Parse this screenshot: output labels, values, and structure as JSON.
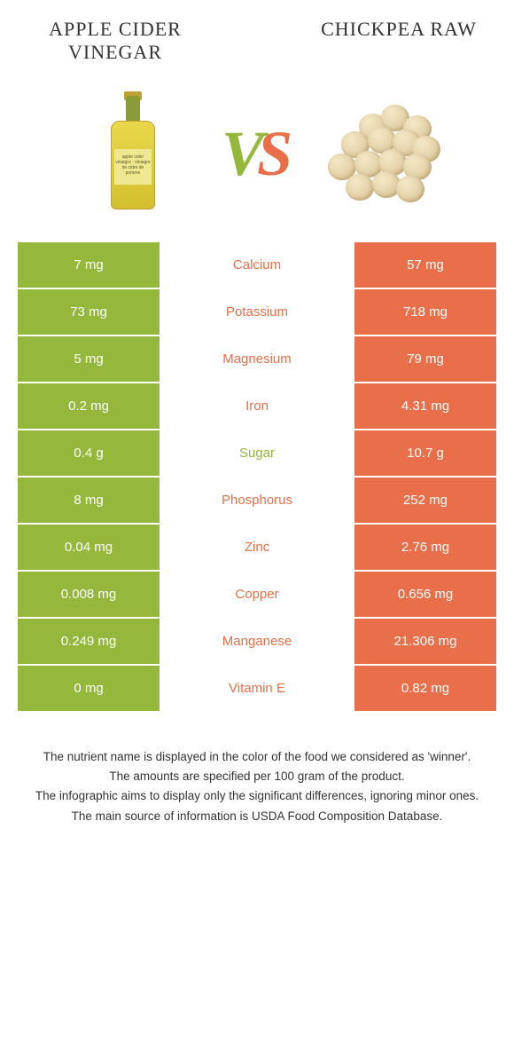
{
  "left_food": {
    "title": "APPLE CIDER VINEGAR",
    "color": "#95b73c",
    "label_text": "apple cider\nvinaigre - vinaigre de\ncidre de pomme"
  },
  "right_food": {
    "title": "CHICKPEA RAW",
    "color": "#e86f4a"
  },
  "vs_text": {
    "v": "V",
    "s": "S"
  },
  "rows": [
    {
      "left": "7 mg",
      "mid": "Calcium",
      "right": "57 mg",
      "winner": "right"
    },
    {
      "left": "73 mg",
      "mid": "Potassium",
      "right": "718 mg",
      "winner": "right"
    },
    {
      "left": "5 mg",
      "mid": "Magnesium",
      "right": "79 mg",
      "winner": "right"
    },
    {
      "left": "0.2 mg",
      "mid": "Iron",
      "right": "4.31 mg",
      "winner": "right"
    },
    {
      "left": "0.4 g",
      "mid": "Sugar",
      "right": "10.7 g",
      "winner": "left"
    },
    {
      "left": "8 mg",
      "mid": "Phosphorus",
      "right": "252 mg",
      "winner": "right"
    },
    {
      "left": "0.04 mg",
      "mid": "Zinc",
      "right": "2.76 mg",
      "winner": "right"
    },
    {
      "left": "0.008 mg",
      "mid": "Copper",
      "right": "0.656 mg",
      "winner": "right"
    },
    {
      "left": "0.249 mg",
      "mid": "Manganese",
      "right": "21.306 mg",
      "winner": "right"
    },
    {
      "left": "0 mg",
      "mid": "Vitamin E",
      "right": "0.82 mg",
      "winner": "right"
    }
  ],
  "footer": {
    "line1": "The nutrient name is displayed in the color of the food we considered as 'winner'.",
    "line2": "The amounts are specified per 100 gram of the product.",
    "line3": "The infographic aims to display only the significant differences, ignoring minor ones.",
    "line4": "The main source of information is USDA Food Composition Database."
  },
  "chickpea_positions": [
    {
      "t": 10,
      "l": 40
    },
    {
      "t": 0,
      "l": 65
    },
    {
      "t": 12,
      "l": 90
    },
    {
      "t": 30,
      "l": 20
    },
    {
      "t": 25,
      "l": 50
    },
    {
      "t": 28,
      "l": 78
    },
    {
      "t": 35,
      "l": 100
    },
    {
      "t": 55,
      "l": 5
    },
    {
      "t": 52,
      "l": 35
    },
    {
      "t": 50,
      "l": 62
    },
    {
      "t": 55,
      "l": 90
    },
    {
      "t": 78,
      "l": 25
    },
    {
      "t": 75,
      "l": 55
    },
    {
      "t": 80,
      "l": 82
    }
  ]
}
